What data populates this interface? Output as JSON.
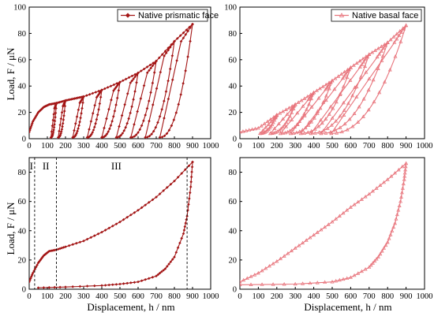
{
  "colors": {
    "dark": "#a31515",
    "light": "#e8747c",
    "axis": "#000000"
  },
  "chart_data": [
    {
      "type": "line",
      "panel": "top-left",
      "legend": "Native prismatic face",
      "legend_position": "top-right",
      "marker": "diamond",
      "xlim": [
        0,
        1000
      ],
      "ylim": [
        0,
        100
      ],
      "xticks": [
        "0",
        "100",
        "200",
        "300",
        "400",
        "500",
        "600",
        "700",
        "800",
        "900",
        "1000"
      ],
      "yticks": [
        "0",
        "20",
        "40",
        "60",
        "80",
        "100"
      ],
      "ylabel": "Load, F / μN",
      "xlabel": "",
      "peak_loads": [
        {
          "h": 150,
          "F": 27
        },
        {
          "h": 200,
          "F": 29
        },
        {
          "h": 300,
          "F": 32
        },
        {
          "h": 400,
          "F": 37
        },
        {
          "h": 500,
          "F": 43
        },
        {
          "h": 600,
          "F": 50
        },
        {
          "h": 700,
          "F": 59
        },
        {
          "h": 800,
          "F": 74
        },
        {
          "h": 900,
          "F": 87
        }
      ],
      "loading_curve": [
        [
          0,
          5
        ],
        [
          20,
          13
        ],
        [
          50,
          20
        ],
        [
          80,
          24
        ],
        [
          110,
          26
        ],
        [
          150,
          27
        ],
        [
          200,
          29
        ],
        [
          250,
          30.5
        ],
        [
          300,
          32
        ],
        [
          400,
          37
        ],
        [
          500,
          43
        ],
        [
          600,
          50
        ],
        [
          700,
          59
        ],
        [
          800,
          74
        ],
        [
          900,
          87
        ]
      ]
    },
    {
      "type": "line",
      "panel": "top-right",
      "legend": "Native basal face",
      "legend_position": "top-right",
      "marker": "triangle",
      "xlim": [
        0,
        1000
      ],
      "ylim": [
        0,
        100
      ],
      "xticks": [
        "0",
        "100",
        "200",
        "300",
        "400",
        "500",
        "600",
        "700",
        "800",
        "900",
        "1000"
      ],
      "yticks": [
        "0",
        "20",
        "40",
        "60",
        "80",
        "100"
      ],
      "ylabel": "",
      "xlabel": "",
      "peak_loads": [
        {
          "h": 200,
          "F": 18
        },
        {
          "h": 300,
          "F": 26
        },
        {
          "h": 400,
          "F": 35
        },
        {
          "h": 500,
          "F": 44
        },
        {
          "h": 600,
          "F": 54
        },
        {
          "h": 700,
          "F": 64
        },
        {
          "h": 800,
          "F": 73
        },
        {
          "h": 900,
          "F": 86
        }
      ],
      "loading_curve": [
        [
          0,
          5
        ],
        [
          100,
          8
        ],
        [
          200,
          18
        ],
        [
          300,
          26
        ],
        [
          400,
          35
        ],
        [
          500,
          44
        ],
        [
          600,
          54
        ],
        [
          700,
          64
        ],
        [
          800,
          73
        ],
        [
          900,
          86
        ]
      ]
    },
    {
      "type": "line",
      "panel": "bottom-left",
      "marker": "diamond",
      "xlim": [
        0,
        1000
      ],
      "ylim": [
        0,
        90
      ],
      "xticks": [
        "0",
        "100",
        "200",
        "300",
        "400",
        "500",
        "600",
        "700",
        "800",
        "900",
        "1000"
      ],
      "yticks": [
        "0",
        "20",
        "40",
        "60",
        "80"
      ],
      "ylabel": "Load, F / μN",
      "xlabel": "Displacement, h / nm",
      "region_labels": [
        "I",
        "II",
        "III"
      ],
      "region_boundaries": [
        30,
        150,
        870
      ],
      "loading_curve": [
        [
          0,
          5
        ],
        [
          20,
          11
        ],
        [
          50,
          18
        ],
        [
          80,
          23
        ],
        [
          110,
          26
        ],
        [
          150,
          27
        ],
        [
          200,
          29
        ],
        [
          300,
          33
        ],
        [
          400,
          39
        ],
        [
          500,
          46
        ],
        [
          600,
          54
        ],
        [
          700,
          63
        ],
        [
          800,
          74
        ],
        [
          900,
          87
        ]
      ],
      "unloading_curve": [
        [
          900,
          87
        ],
        [
          890,
          70
        ],
        [
          870,
          50
        ],
        [
          850,
          38
        ],
        [
          800,
          22
        ],
        [
          750,
          14
        ],
        [
          700,
          9
        ],
        [
          600,
          5
        ],
        [
          500,
          3.5
        ],
        [
          400,
          2.5
        ],
        [
          200,
          1.5
        ],
        [
          50,
          1
        ]
      ]
    },
    {
      "type": "line",
      "panel": "bottom-right",
      "marker": "triangle",
      "xlim": [
        0,
        1000
      ],
      "ylim": [
        0,
        90
      ],
      "xticks": [
        "0",
        "100",
        "200",
        "300",
        "400",
        "500",
        "600",
        "700",
        "800",
        "900",
        "1000"
      ],
      "yticks": [
        "0",
        "20",
        "40",
        "60",
        "80"
      ],
      "ylabel": "",
      "xlabel": "Displacement, h / nm",
      "loading_curve": [
        [
          0,
          5
        ],
        [
          100,
          11
        ],
        [
          200,
          19
        ],
        [
          300,
          28
        ],
        [
          400,
          37
        ],
        [
          500,
          46
        ],
        [
          600,
          56
        ],
        [
          700,
          65
        ],
        [
          800,
          75
        ],
        [
          900,
          86
        ]
      ],
      "unloading_curve": [
        [
          900,
          86
        ],
        [
          890,
          75
        ],
        [
          870,
          60
        ],
        [
          840,
          45
        ],
        [
          800,
          32
        ],
        [
          750,
          22
        ],
        [
          700,
          15
        ],
        [
          600,
          8
        ],
        [
          500,
          5
        ],
        [
          300,
          3.5
        ],
        [
          0,
          3
        ]
      ]
    }
  ]
}
